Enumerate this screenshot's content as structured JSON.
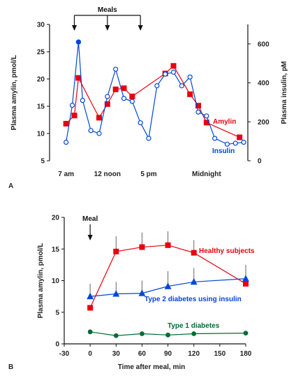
{
  "chart_data": [
    {
      "panel": "A",
      "type": "line",
      "annotation": "Meals",
      "meal_times": [
        "08:00",
        "12:00",
        "16:00"
      ],
      "x_tick_labels": [
        "7 am",
        "12 noon",
        "5 pm",
        "Midnight"
      ],
      "x_tick_values": [
        "07:00",
        "12:00",
        "17:00",
        "24:00"
      ],
      "xlim": [
        "05:00",
        "29:00"
      ],
      "ylabel_left": "Plasma amylin, pmol/L",
      "ylim_left": [
        5,
        30
      ],
      "yticks_left": [
        5,
        10,
        15,
        20,
        25,
        30
      ],
      "ylabel_right": "Plasma insulin, pM",
      "ylim_right": [
        0,
        700
      ],
      "yticks_right": [
        0,
        200,
        400,
        600
      ],
      "series": [
        {
          "name": "Amylin",
          "color": "#e8000e",
          "marker": "square",
          "axis": "left",
          "x": [
            "07:00",
            "08:00",
            "08:30",
            "11:00",
            "12:00",
            "13:00",
            "14:00",
            "15:00",
            "19:00",
            "20:00",
            "22:00",
            "23:00",
            "24:00",
            "28:00"
          ],
          "y": [
            11.8,
            13.3,
            20.2,
            12.9,
            15.4,
            18.1,
            18.3,
            16.8,
            21.0,
            22.4,
            17.2,
            15.1,
            12.0,
            9.3
          ]
        },
        {
          "name": "Insulin",
          "color": "#0047d8",
          "marker": "circle",
          "axis": "right",
          "x": [
            "07:00",
            "07:45",
            "08:30",
            "09:00",
            "10:00",
            "11:00",
            "12:00",
            "13:00",
            "14:00",
            "15:00",
            "16:00",
            "17:00",
            "18:00",
            "19:00",
            "20:00",
            "21:00",
            "22:00",
            "23:00",
            "24:00",
            "25:00",
            "26:30",
            "27:30",
            "28:30"
          ],
          "y": [
            95,
            285,
            610,
            310,
            155,
            140,
            330,
            470,
            320,
            305,
            195,
            115,
            385,
            445,
            455,
            385,
            430,
            250,
            230,
            115,
            85,
            90,
            95
          ]
        }
      ]
    },
    {
      "panel": "B",
      "type": "line",
      "annotation": "Meal",
      "meal_x": 0,
      "xlabel": "Time after meal, min",
      "xlim": [
        -30,
        180
      ],
      "xticks": [
        -30,
        0,
        30,
        60,
        90,
        120,
        150,
        180
      ],
      "ylabel": "Plasma amylin, pmol/L",
      "ylim": [
        0,
        20
      ],
      "yticks": [
        0,
        5,
        10,
        15,
        20
      ],
      "series": [
        {
          "name": "Healthy subjects",
          "color": "#e8000e",
          "marker": "square",
          "x": [
            0,
            30,
            60,
            90,
            120,
            180
          ],
          "y": [
            5.7,
            14.6,
            15.3,
            15.6,
            14.4,
            9.5
          ],
          "error_up": [
            0,
            0,
            0,
            0,
            0,
            0
          ],
          "error_down": [
            0,
            0,
            0,
            0,
            2.1,
            0
          ],
          "extra_error_bars": [
            {
              "x": 60,
              "y": 15.3,
              "to": 17.6
            },
            {
              "x": 90,
              "y": 15.6,
              "to": 17.8
            },
            {
              "x": 120,
              "y": 14.4,
              "to": 16.4
            },
            {
              "x": 30,
              "y": 14.6,
              "to": 17.0
            }
          ]
        },
        {
          "name": "Type 2 diabetes using insulin",
          "color": "#0047d8",
          "marker": "triangle",
          "x": [
            0,
            30,
            60,
            90,
            120,
            180
          ],
          "y": [
            7.5,
            7.9,
            8.0,
            9.1,
            9.8,
            10.3
          ],
          "error_to": [
            9.5,
            9.8,
            10.0,
            11.5,
            12.0,
            12.5
          ]
        },
        {
          "name": "Type 1 diabetes",
          "color": "#006c35",
          "marker": "circle",
          "x": [
            0,
            30,
            60,
            90,
            120,
            180
          ],
          "y": [
            1.9,
            1.3,
            1.6,
            1.4,
            1.6,
            1.7
          ]
        }
      ]
    }
  ]
}
